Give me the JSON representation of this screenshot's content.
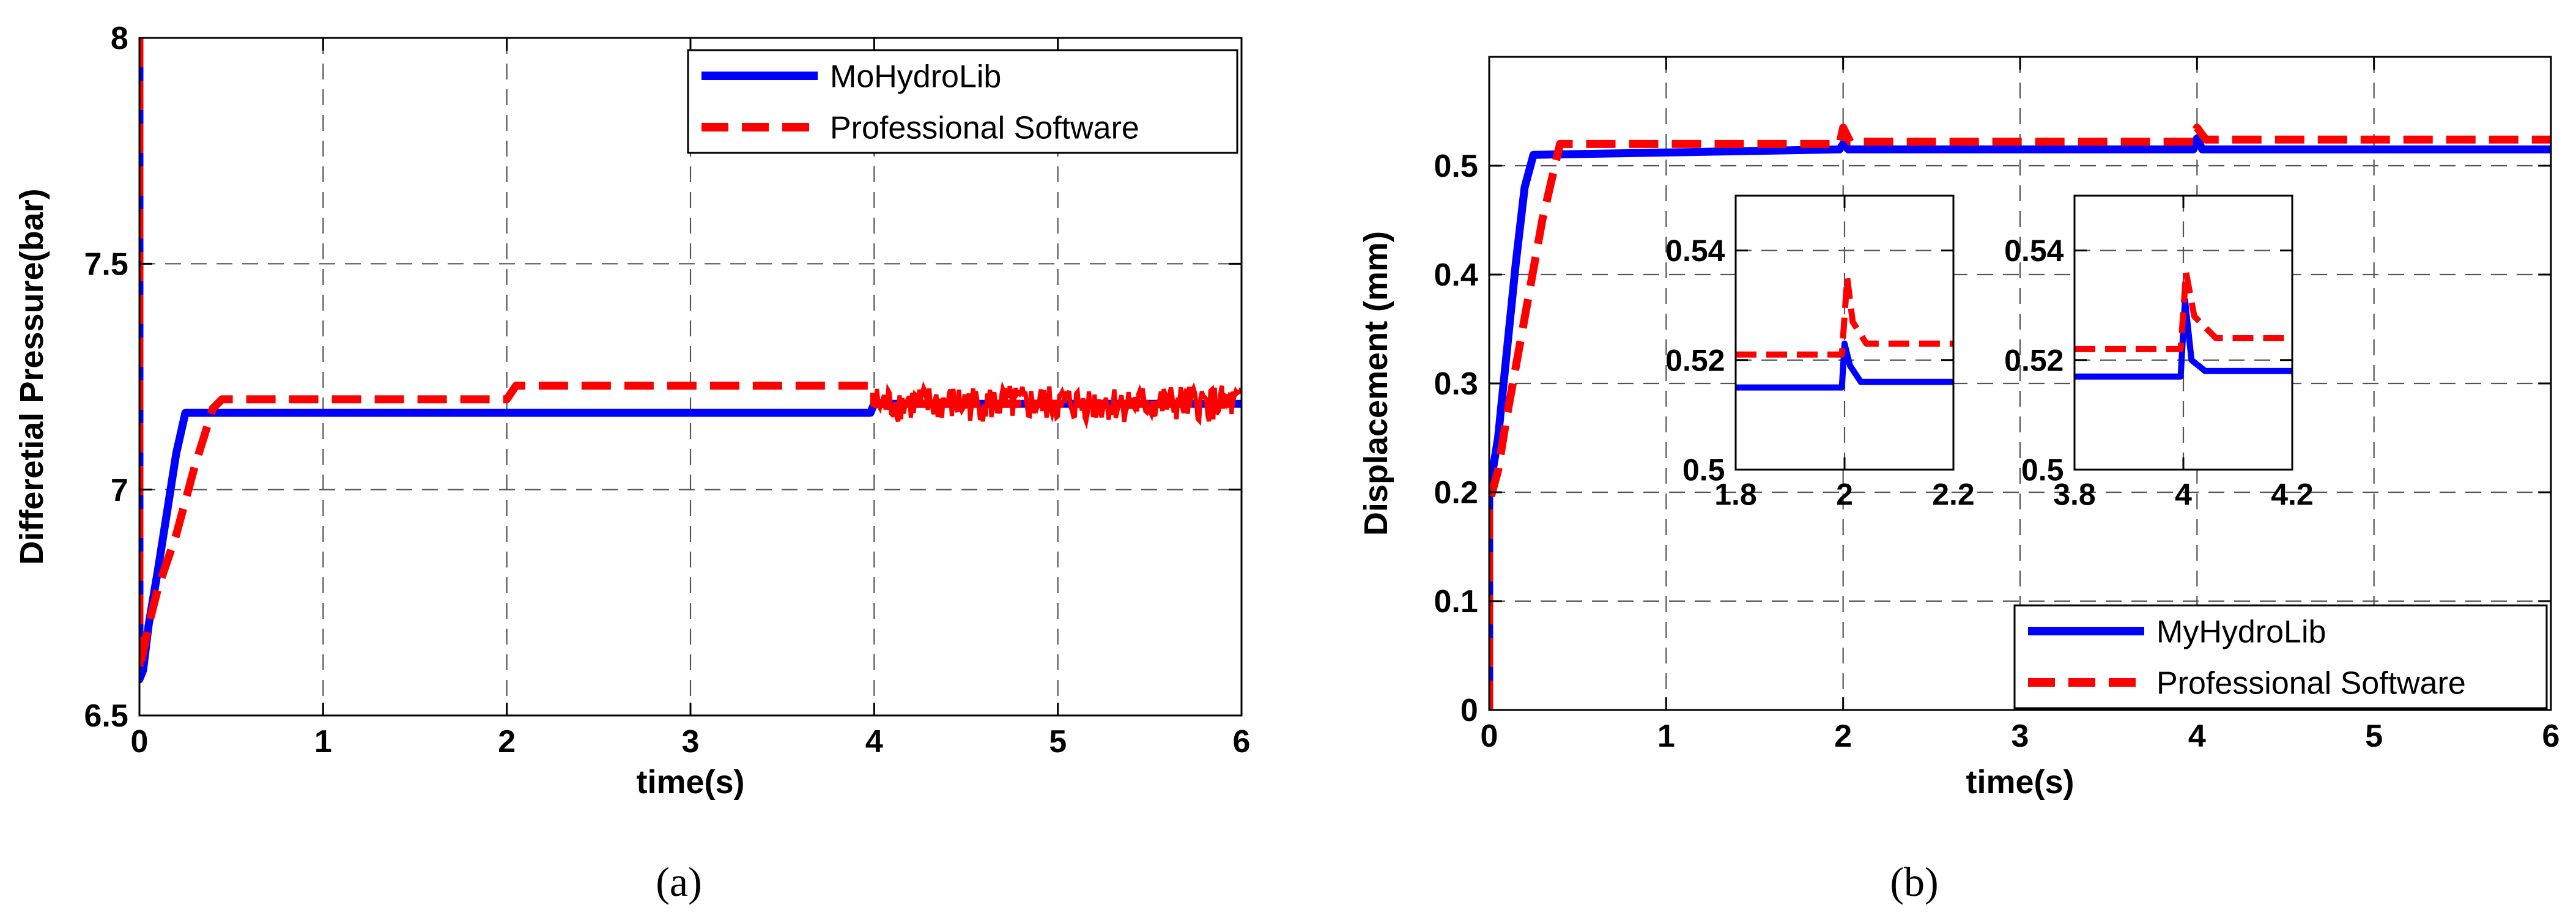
{
  "panels": [
    {
      "sublabel": "(a)",
      "chart_data": {
        "type": "line",
        "title": "",
        "xlabel": "time(s)",
        "ylabel": "Differetial Pressure(bar)",
        "xlim": [
          0,
          6
        ],
        "ylim": [
          6.5,
          8
        ],
        "xticks": [
          0,
          1,
          2,
          3,
          4,
          5,
          6
        ],
        "xtick_labels": [
          "0",
          "1",
          "2",
          "3",
          "4",
          "5",
          "6"
        ],
        "yticks": [
          6.5,
          7,
          7.5,
          8
        ],
        "ytick_labels": [
          "6.5",
          "7",
          "7.5",
          "8"
        ],
        "grid": true,
        "legend": "top-right",
        "series": [
          {
            "name": "MoHydroLib",
            "color": "#0000ff",
            "style": "solid",
            "points": [
              [
                0.0,
                8.0
              ],
              [
                0.0,
                6.58
              ],
              [
                0.02,
                6.6
              ],
              [
                0.05,
                6.7
              ],
              [
                0.1,
                6.82
              ],
              [
                0.15,
                6.95
              ],
              [
                0.2,
                7.08
              ],
              [
                0.25,
                7.17
              ],
              [
                3.98,
                7.17
              ],
              [
                4.0,
                7.19
              ],
              [
                6.0,
                7.19
              ]
            ]
          },
          {
            "name": "Professional Software",
            "color": "#ff0000",
            "style": "dashed",
            "points": [
              [
                0.0,
                8.0
              ],
              [
                0.0,
                6.6
              ],
              [
                0.05,
                6.7
              ],
              [
                0.1,
                6.78
              ],
              [
                0.2,
                6.9
              ],
              [
                0.3,
                7.05
              ],
              [
                0.4,
                7.18
              ],
              [
                0.45,
                7.2
              ],
              [
                2.0,
                7.2
              ],
              [
                2.05,
                7.23
              ],
              [
                4.0,
                7.23
              ],
              [
                4.0,
                7.19
              ],
              [
                6.0,
                7.19
              ]
            ],
            "noise": {
              "from": 4.0,
              "to": 6.0,
              "center": 7.19,
              "amplitude": 0.04
            }
          }
        ]
      }
    },
    {
      "sublabel": "(b)",
      "chart_data": {
        "type": "line",
        "title": "",
        "xlabel": "time(s)",
        "ylabel": "Displacement (mm)",
        "xlim": [
          0,
          6
        ],
        "ylim": [
          0,
          0.6
        ],
        "xticks": [
          0,
          1,
          2,
          3,
          4,
          5,
          6
        ],
        "xtick_labels": [
          "0",
          "1",
          "2",
          "3",
          "4",
          "5",
          "6"
        ],
        "yticks": [
          0,
          0.1,
          0.2,
          0.3,
          0.4,
          0.5
        ],
        "ytick_labels": [
          "0",
          "0.1",
          "0.2",
          "0.3",
          "0.4",
          "0.5"
        ],
        "grid": true,
        "legend": "bottom-right",
        "series": [
          {
            "name": "MyHydroLib",
            "color": "#0000ff",
            "style": "solid",
            "points": [
              [
                0.0,
                0.0
              ],
              [
                0.0,
                0.2
              ],
              [
                0.05,
                0.25
              ],
              [
                0.1,
                0.33
              ],
              [
                0.15,
                0.41
              ],
              [
                0.2,
                0.48
              ],
              [
                0.25,
                0.51
              ],
              [
                1.98,
                0.515
              ],
              [
                2.0,
                0.52
              ],
              [
                2.03,
                0.515
              ],
              [
                3.98,
                0.515
              ],
              [
                4.0,
                0.525
              ],
              [
                4.03,
                0.515
              ],
              [
                6.0,
                0.515
              ]
            ]
          },
          {
            "name": "Professional Software",
            "color": "#ff0000",
            "style": "dashed",
            "points": [
              [
                0.0,
                0.0
              ],
              [
                0.0,
                0.19
              ],
              [
                0.05,
                0.22
              ],
              [
                0.1,
                0.27
              ],
              [
                0.2,
                0.36
              ],
              [
                0.3,
                0.45
              ],
              [
                0.4,
                0.52
              ],
              [
                1.98,
                0.52
              ],
              [
                2.0,
                0.535
              ],
              [
                2.04,
                0.522
              ],
              [
                3.98,
                0.522
              ],
              [
                4.0,
                0.535
              ],
              [
                4.05,
                0.524
              ],
              [
                6.0,
                0.524
              ]
            ]
          }
        ]
      },
      "insets": [
        {
          "xlim": [
            1.8,
            2.2
          ],
          "ylim": [
            0.5,
            0.55
          ],
          "xticks": [
            1.8,
            2,
            2.2
          ],
          "xtick_labels": [
            "1.8",
            "2",
            "2.2"
          ],
          "yticks": [
            0.5,
            0.52,
            0.54
          ],
          "ytick_labels": [
            "0.5",
            "0.52",
            "0.54"
          ],
          "series": [
            {
              "color": "#0000ff",
              "style": "solid",
              "points": [
                [
                  1.8,
                  0.515
                ],
                [
                  1.995,
                  0.515
                ],
                [
                  2.0,
                  0.523
                ],
                [
                  2.01,
                  0.519
                ],
                [
                  2.03,
                  0.516
                ],
                [
                  2.2,
                  0.516
                ]
              ]
            },
            {
              "color": "#ff0000",
              "style": "dashed",
              "points": [
                [
                  1.8,
                  0.521
                ],
                [
                  1.995,
                  0.521
                ],
                [
                  2.005,
                  0.535
                ],
                [
                  2.015,
                  0.527
                ],
                [
                  2.04,
                  0.523
                ],
                [
                  2.2,
                  0.523
                ]
              ]
            }
          ]
        },
        {
          "xlim": [
            3.8,
            4.2
          ],
          "ylim": [
            0.5,
            0.55
          ],
          "xticks": [
            3.8,
            4,
            4.2
          ],
          "xtick_labels": [
            "3.8",
            "4",
            "4.2"
          ],
          "yticks": [
            0.5,
            0.52,
            0.54
          ],
          "ytick_labels": [
            "0.5",
            "0.52",
            "0.54"
          ],
          "series": [
            {
              "color": "#0000ff",
              "style": "solid",
              "points": [
                [
                  3.8,
                  0.517
                ],
                [
                  3.995,
                  0.517
                ],
                [
                  4.003,
                  0.531
                ],
                [
                  4.015,
                  0.52
                ],
                [
                  4.04,
                  0.518
                ],
                [
                  4.2,
                  0.518
                ]
              ]
            },
            {
              "color": "#ff0000",
              "style": "dashed",
              "points": [
                [
                  3.8,
                  0.522
                ],
                [
                  3.995,
                  0.522
                ],
                [
                  4.005,
                  0.536
                ],
                [
                  4.02,
                  0.528
                ],
                [
                  4.06,
                  0.524
                ],
                [
                  4.2,
                  0.524
                ]
              ]
            }
          ]
        }
      ]
    }
  ]
}
